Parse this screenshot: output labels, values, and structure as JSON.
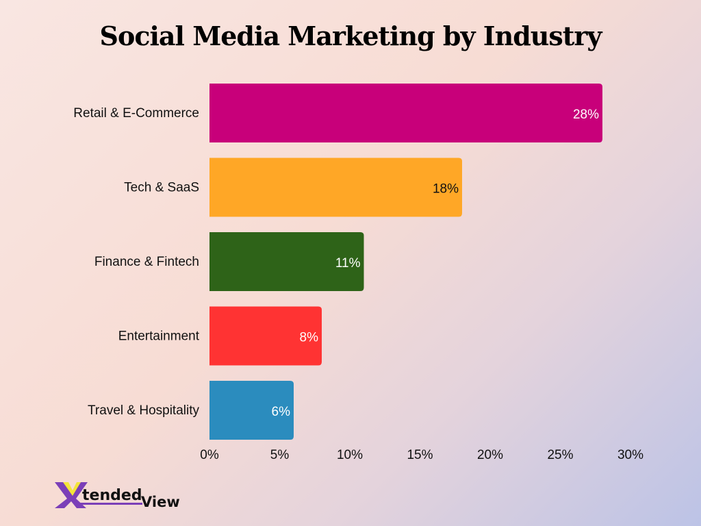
{
  "chart_data": {
    "type": "bar",
    "orientation": "horizontal",
    "title": "Social Media Marketing by Industry",
    "categories": [
      "Retail & E-Commerce",
      "Tech & SaaS",
      "Finance & Fintech",
      "Entertainment",
      "Travel & Hospitality"
    ],
    "values": [
      28,
      18,
      11,
      8,
      6
    ],
    "data_labels": [
      "28%",
      "18%",
      "11%",
      "8%",
      "6%"
    ],
    "colors": [
      "#c8007a",
      "#ffa726",
      "#2e6318",
      "#ff3333",
      "#2b8cbe"
    ],
    "label_colors": [
      "#ffffff",
      "#111111",
      "#ffffff",
      "#ffffff",
      "#ffffff"
    ],
    "xlim": [
      0,
      30
    ],
    "xticks": [
      0,
      5,
      10,
      15,
      20,
      25,
      30
    ],
    "xtick_labels": [
      "0%",
      "5%",
      "10%",
      "15%",
      "20%",
      "25%",
      "30%"
    ],
    "xlabel": "",
    "ylabel": "",
    "grid": false,
    "legend": "none"
  },
  "logo": {
    "text_part1": "Xtended",
    "text_part2": "View"
  }
}
